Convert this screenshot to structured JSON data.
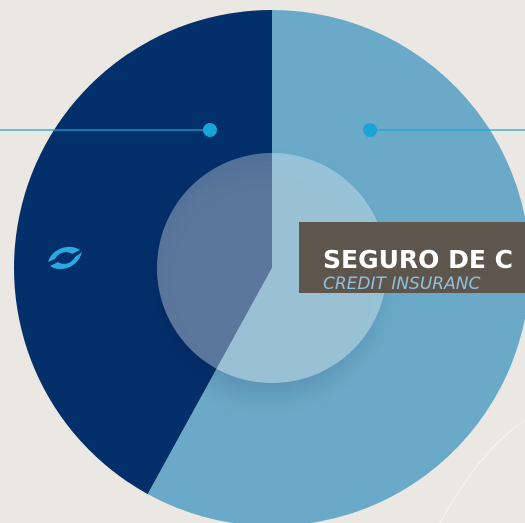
{
  "chart_data": {
    "type": "pie",
    "categories": [
      null,
      null
    ],
    "values": [
      42,
      58
    ],
    "colors": [
      "#03306b",
      "#6aaac8"
    ],
    "callout": {
      "title": "SEGURO DE C",
      "subtitle": "CREDIT INSURANC"
    }
  }
}
